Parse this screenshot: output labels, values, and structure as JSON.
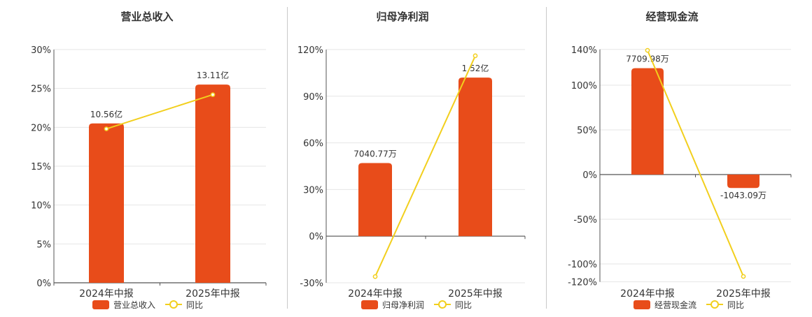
{
  "chart_data": [
    {
      "type": "bar",
      "title": "营业总收入",
      "categories": [
        "2024年中报",
        "2025年中报"
      ],
      "ylim": [
        0,
        30
      ],
      "yticks": [
        "0%",
        "5%",
        "10%",
        "15%",
        "20%",
        "25%",
        "30%"
      ],
      "series": [
        {
          "name": "营业总收入",
          "type": "bar",
          "values": [
            20.5,
            25.5
          ],
          "labels": [
            "10.56亿",
            "13.11亿"
          ]
        },
        {
          "name": "同比",
          "type": "line",
          "values": [
            19.8,
            24.2
          ]
        }
      ],
      "colors": {
        "bar": "#e84c1a",
        "line": "#f2cf1d"
      },
      "legend": "bottom"
    },
    {
      "type": "bar",
      "title": "归母净利润",
      "categories": [
        "2024年中报",
        "2025年中报"
      ],
      "ylim": [
        -30,
        120
      ],
      "yticks": [
        "-30%",
        "0%",
        "30%",
        "60%",
        "90%",
        "120%"
      ],
      "series": [
        {
          "name": "归母净利润",
          "type": "bar",
          "values": [
            47,
            102
          ],
          "labels": [
            "7040.77万",
            "1.52亿"
          ]
        },
        {
          "name": "同比",
          "type": "line",
          "values": [
            -26,
            116
          ]
        }
      ],
      "colors": {
        "bar": "#e84c1a",
        "line": "#f2cf1d"
      },
      "legend": "bottom"
    },
    {
      "type": "bar",
      "title": "经营现金流",
      "categories": [
        "2024年中报",
        "2025年中报"
      ],
      "ylim": [
        -120,
        140
      ],
      "yticks": [
        "-120%",
        "-100%",
        "-50%",
        "0%",
        "50%",
        "100%",
        "140%"
      ],
      "series": [
        {
          "name": "经营现金流",
          "type": "bar",
          "values": [
            119,
            -15
          ],
          "labels": [
            "7709.98万",
            "-1043.09万"
          ]
        },
        {
          "name": "同比",
          "type": "line",
          "values": [
            139,
            -114
          ]
        }
      ],
      "colors": {
        "bar": "#e84c1a",
        "line": "#f2cf1d"
      },
      "legend": "bottom"
    }
  ]
}
